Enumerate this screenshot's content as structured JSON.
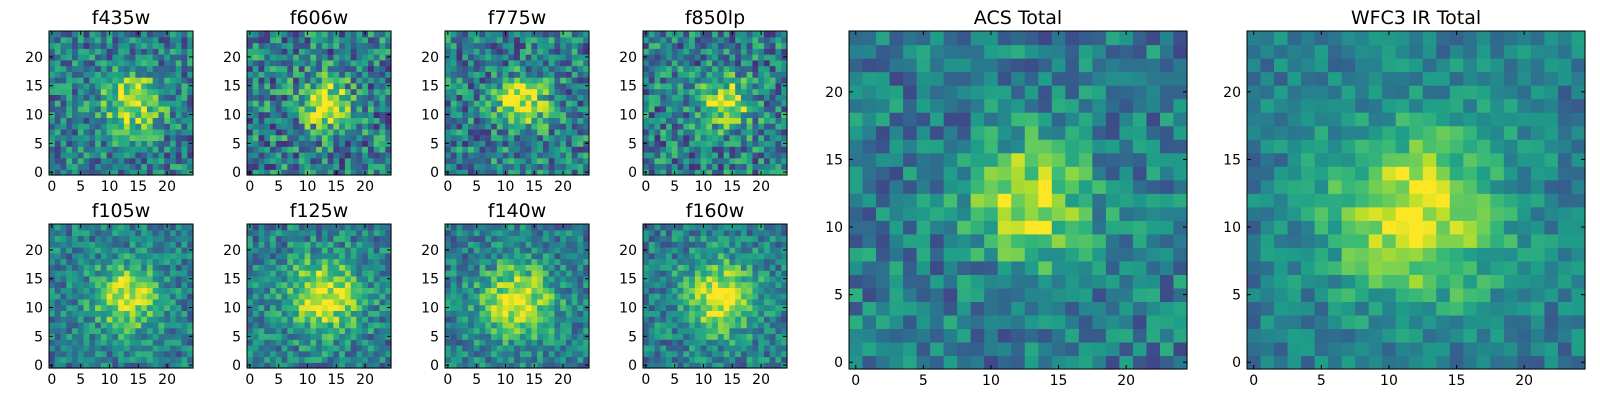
{
  "chart_data": [
    {
      "type": "heatmap",
      "title": "f435w",
      "xlim": [
        0,
        24
      ],
      "ylim": [
        0,
        24
      ],
      "xticks": [
        0,
        5,
        10,
        15,
        20
      ],
      "yticks": [
        0,
        5,
        10,
        15,
        20
      ],
      "colormap": "viridis",
      "grid_size": 25,
      "peak": [
        14,
        12
      ],
      "bright_radius": 3.5,
      "noise": 0.38
    },
    {
      "type": "heatmap",
      "title": "f606w",
      "xlim": [
        0,
        24
      ],
      "ylim": [
        0,
        24
      ],
      "xticks": [
        0,
        5,
        10,
        15,
        20
      ],
      "yticks": [
        0,
        5,
        10,
        15,
        20
      ],
      "colormap": "viridis",
      "grid_size": 25,
      "peak": [
        13,
        12
      ],
      "bright_radius": 3,
      "noise": 0.45
    },
    {
      "type": "heatmap",
      "title": "f775w",
      "xlim": [
        0,
        24
      ],
      "ylim": [
        0,
        24
      ],
      "xticks": [
        0,
        5,
        10,
        15,
        20
      ],
      "yticks": [
        0,
        5,
        10,
        15,
        20
      ],
      "colormap": "viridis",
      "grid_size": 25,
      "peak": [
        13,
        12
      ],
      "bright_radius": 3,
      "noise": 0.42
    },
    {
      "type": "heatmap",
      "title": "f850lp",
      "xlim": [
        0,
        24
      ],
      "ylim": [
        0,
        24
      ],
      "xticks": [
        0,
        5,
        10,
        15,
        20
      ],
      "yticks": [
        0,
        5,
        10,
        15,
        20
      ],
      "colormap": "viridis",
      "grid_size": 25,
      "peak": [
        14,
        12
      ],
      "bright_radius": 3,
      "noise": 0.42
    },
    {
      "type": "heatmap",
      "title": "f105w",
      "xlim": [
        0,
        24
      ],
      "ylim": [
        0,
        24
      ],
      "xticks": [
        0,
        5,
        10,
        15,
        20
      ],
      "yticks": [
        0,
        5,
        10,
        15,
        20
      ],
      "colormap": "viridis",
      "grid_size": 25,
      "peak": [
        13,
        12
      ],
      "bright_radius": 4,
      "noise": 0.3
    },
    {
      "type": "heatmap",
      "title": "f125w",
      "xlim": [
        0,
        24
      ],
      "ylim": [
        0,
        24
      ],
      "xticks": [
        0,
        5,
        10,
        15,
        20
      ],
      "yticks": [
        0,
        5,
        10,
        15,
        20
      ],
      "colormap": "viridis",
      "grid_size": 25,
      "peak": [
        13,
        12
      ],
      "bright_radius": 4.5,
      "noise": 0.32
    },
    {
      "type": "heatmap",
      "title": "f140w",
      "xlim": [
        0,
        24
      ],
      "ylim": [
        0,
        24
      ],
      "xticks": [
        0,
        5,
        10,
        15,
        20
      ],
      "yticks": [
        0,
        5,
        10,
        15,
        20
      ],
      "colormap": "viridis",
      "grid_size": 25,
      "peak": [
        12,
        11
      ],
      "bright_radius": 4.5,
      "noise": 0.3
    },
    {
      "type": "heatmap",
      "title": "f160w",
      "xlim": [
        0,
        24
      ],
      "ylim": [
        0,
        24
      ],
      "xticks": [
        0,
        5,
        10,
        15,
        20
      ],
      "yticks": [
        0,
        5,
        10,
        15,
        20
      ],
      "colormap": "viridis",
      "grid_size": 25,
      "peak": [
        13,
        12
      ],
      "bright_radius": 4.5,
      "noise": 0.3
    },
    {
      "type": "heatmap",
      "title": "ACS Total",
      "xlim": [
        0,
        24
      ],
      "ylim": [
        0,
        24
      ],
      "xticks": [
        0,
        5,
        10,
        15,
        20
      ],
      "yticks": [
        0,
        5,
        10,
        15,
        20
      ],
      "colormap": "viridis",
      "grid_size": 25,
      "peak": [
        13,
        12
      ],
      "bright_radius": 3,
      "noise": 0.3
    },
    {
      "type": "heatmap",
      "title": "WFC3 IR Total",
      "xlim": [
        0,
        24
      ],
      "ylim": [
        0,
        24
      ],
      "xticks": [
        0,
        5,
        10,
        15,
        20
      ],
      "yticks": [
        0,
        5,
        10,
        15,
        20
      ],
      "colormap": "viridis",
      "grid_size": 25,
      "peak": [
        12,
        11
      ],
      "bright_radius": 4.5,
      "noise": 0.22
    }
  ]
}
